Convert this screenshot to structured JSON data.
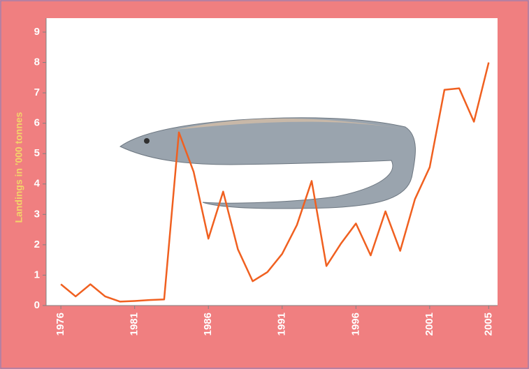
{
  "chart_data": {
    "type": "line",
    "y_label": "Landings in '000 tonnes",
    "x": [
      1976,
      1977,
      1978,
      1979,
      1980,
      1981,
      1982,
      1983,
      1984,
      1985,
      1986,
      1987,
      1988,
      1989,
      1990,
      1991,
      1992,
      1993,
      1994,
      1995,
      1996,
      1997,
      1998,
      1999,
      2000,
      2001,
      2002,
      2003,
      2004,
      2005
    ],
    "series": [
      {
        "color": "#f06020",
        "values": [
          0.7,
          0.3,
          0.7,
          0.3,
          0.13,
          0.15,
          0.18,
          0.2,
          5.7,
          4.4,
          2.2,
          3.75,
          1.85,
          0.8,
          1.1,
          1.7,
          2.65,
          4.1,
          1.3,
          2.05,
          2.7,
          1.65,
          3.1,
          1.8,
          3.5,
          4.55,
          7.1,
          7.15,
          6.05,
          8.0
        ]
      }
    ],
    "xlim": [
      1975,
      2005.6
    ],
    "xticks": [
      1976,
      1981,
      1986,
      1991,
      1996,
      2001,
      2005
    ],
    "ylim": [
      0,
      9
    ],
    "yticks": [
      0,
      1,
      2,
      3,
      4,
      5,
      6,
      7,
      8,
      9
    ]
  }
}
